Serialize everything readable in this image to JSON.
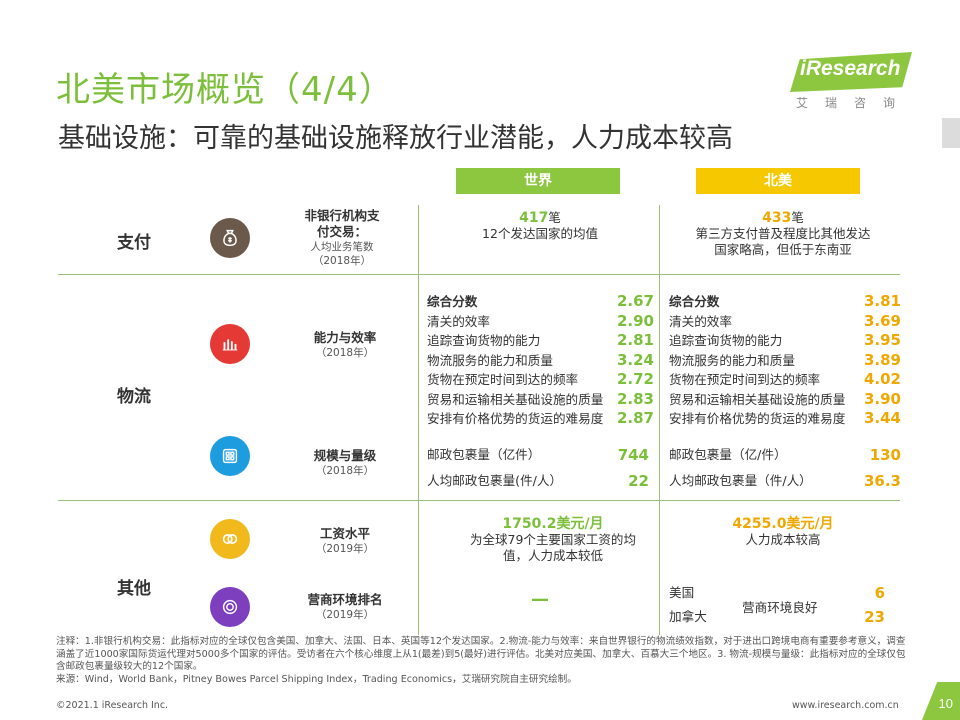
{
  "header": {
    "title": "北美市场概览（4/4）",
    "subtitle": "基础设施：可靠的基础设施释放行业潜能，人力成本较高",
    "logo_text": "iResearch",
    "logo_cn": "艾瑞咨询"
  },
  "columns": {
    "world": "世界",
    "north_america": "北美"
  },
  "colors": {
    "green": "#8dc63f",
    "yellow": "#f5c800",
    "grid": "#9bbf7a"
  },
  "categories": {
    "payment": "支付",
    "logistics": "物流",
    "other": "其他"
  },
  "icons": {
    "payment": "money-bag-icon",
    "capability": "bar-chart-icon",
    "scale": "grid-icon",
    "wage": "linked-rings-icon",
    "business": "target-icon"
  },
  "payment": {
    "metric_name": "非银行机构支付交易：",
    "metric_sub": "人均业务笔数",
    "metric_year": "（2018年）",
    "world_value": "417",
    "world_unit": "笔",
    "world_note": "12个发达国家的均值",
    "na_value": "433",
    "na_unit": "笔",
    "na_note": "第三方支付普及程度比其他发达国家略高，但低于东南亚"
  },
  "capability": {
    "metric_name": "能力与效率",
    "metric_year": "（2018年）",
    "rows": [
      {
        "label": "综合分数",
        "world": "2.67",
        "na": "3.81",
        "bold": true
      },
      {
        "label": "清关的效率",
        "world": "2.90",
        "na": "3.69"
      },
      {
        "label": "追踪查询货物的能力",
        "world": "2.81",
        "na": "3.95"
      },
      {
        "label": "物流服务的能力和质量",
        "world": "3.24",
        "na": "3.89"
      },
      {
        "label": "货物在预定时间到达的频率",
        "world": "2.72",
        "na": "4.02"
      },
      {
        "label": "贸易和运输相关基础设施的质量",
        "world": "2.83",
        "na": "3.90"
      },
      {
        "label": "安排有价格优势的货运的难易度",
        "world": "2.87",
        "na": "3.44"
      }
    ]
  },
  "scale": {
    "metric_name": "规模与量级",
    "metric_year": "（2018年）",
    "world_rows": [
      {
        "label": "邮政包裹量（亿件）",
        "value": "744"
      },
      {
        "label": "人均邮政包裹量(件/人）",
        "value": "22"
      }
    ],
    "na_rows": [
      {
        "label": "邮政包裹量（亿/件）",
        "value": "130"
      },
      {
        "label": "人均邮政包裹量（件/人）",
        "value": "36.3"
      }
    ]
  },
  "wage": {
    "metric_name": "工资水平",
    "metric_year": "（2019年）",
    "world_value": "1750.2美元/月",
    "world_note": "为全球79个主要国家工资的均值，人力成本较低",
    "na_value": "4255.0美元/月",
    "na_note": "人力成本较高"
  },
  "business": {
    "metric_name": "营商环境排名",
    "metric_year": "（2019年）",
    "world_value": "—",
    "na_country_1": "美国",
    "na_value_1": "6",
    "na_country_2": "加拿大",
    "na_value_2": "23",
    "na_note": "营商环境良好"
  },
  "notes": {
    "line1": "注释：1.非银行机构交易：此指标对应的全球仅包含美国、加拿大、法国、日本、英国等12个发达国家。2.物流-能力与效率：来自世界银行的物流绩效指数，对于进出口跨境电商有重要参考意义，调查涵盖了近1000家国际货运代理对5000多个国家的评估。受访者在六个核心维度上从1(最差)到5(最好)进行评估。北美对应美国、加拿大、百慕大三个地区。3. 物流-规模与量级：此指标对应的全球仅包含邮政包裹量级较大的12个国家。",
    "source": "来源：Wind，World Bank，Pitney Bowes Parcel Shipping Index，Trading Economics，艾瑞研究院自主研究绘制。"
  },
  "footer": {
    "copyright": "©2021.1 iResearch Inc.",
    "url": "www.iresearch.com.cn",
    "page": "10"
  }
}
